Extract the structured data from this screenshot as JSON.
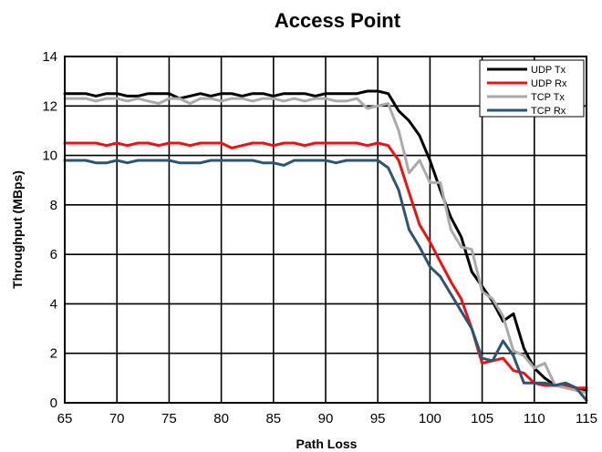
{
  "chart_data": {
    "type": "line",
    "title": "Access Point",
    "xlabel": "Path Loss",
    "ylabel": "Throughput (MBps)",
    "xlim": [
      65,
      115
    ],
    "ylim": [
      0,
      14
    ],
    "xticks": [
      65,
      70,
      75,
      80,
      85,
      90,
      95,
      100,
      105,
      110,
      115
    ],
    "yticks": [
      0,
      2,
      4,
      6,
      8,
      10,
      12,
      14
    ],
    "grid": true,
    "legend_position": "top-right",
    "x": [
      65,
      66,
      67,
      68,
      69,
      70,
      71,
      72,
      73,
      74,
      75,
      76,
      77,
      78,
      79,
      80,
      81,
      82,
      83,
      84,
      85,
      86,
      87,
      88,
      89,
      90,
      91,
      92,
      93,
      94,
      95,
      96,
      97,
      98,
      99,
      100,
      101,
      102,
      103,
      104,
      105,
      106,
      107,
      108,
      109,
      110,
      111,
      112,
      113,
      114,
      115
    ],
    "series": [
      {
        "name": "UDP Tx",
        "color": "#000000",
        "values": [
          12.5,
          12.5,
          12.5,
          12.4,
          12.5,
          12.5,
          12.4,
          12.4,
          12.5,
          12.5,
          12.5,
          12.3,
          12.4,
          12.5,
          12.4,
          12.5,
          12.5,
          12.4,
          12.5,
          12.5,
          12.4,
          12.5,
          12.5,
          12.5,
          12.4,
          12.5,
          12.5,
          12.5,
          12.5,
          12.6,
          12.6,
          12.5,
          11.8,
          11.4,
          10.8,
          9.8,
          8.6,
          7.5,
          6.7,
          5.3,
          4.7,
          4.1,
          3.3,
          3.6,
          2.2,
          1.4,
          1.0,
          0.7,
          0.8,
          0.6,
          0.5
        ]
      },
      {
        "name": "UDP Rx",
        "color": "#ee1111",
        "values": [
          10.5,
          10.5,
          10.5,
          10.5,
          10.4,
          10.5,
          10.4,
          10.5,
          10.5,
          10.4,
          10.5,
          10.5,
          10.4,
          10.5,
          10.5,
          10.5,
          10.3,
          10.4,
          10.5,
          10.5,
          10.4,
          10.5,
          10.5,
          10.4,
          10.5,
          10.5,
          10.5,
          10.5,
          10.5,
          10.4,
          10.5,
          10.4,
          9.8,
          8.5,
          7.2,
          6.5,
          5.7,
          4.9,
          4.2,
          3.0,
          1.6,
          1.7,
          1.8,
          1.3,
          1.2,
          0.8,
          0.7,
          0.7,
          0.7,
          0.6,
          0.6
        ]
      },
      {
        "name": "TCP Tx",
        "color": "#aaaaaa",
        "values": [
          12.3,
          12.3,
          12.3,
          12.2,
          12.3,
          12.3,
          12.2,
          12.3,
          12.2,
          12.1,
          12.3,
          12.3,
          12.1,
          12.3,
          12.3,
          12.2,
          12.3,
          12.3,
          12.2,
          12.3,
          12.3,
          12.2,
          12.3,
          12.2,
          12.3,
          12.3,
          12.2,
          12.2,
          12.3,
          11.9,
          12.0,
          12.1,
          11.0,
          9.3,
          9.8,
          8.9,
          8.9,
          7.0,
          6.3,
          6.2,
          4.5,
          4.2,
          3.5,
          2.1,
          1.9,
          1.4,
          1.6,
          0.7,
          0.6,
          0.5,
          0.4
        ]
      },
      {
        "name": "TCP Rx",
        "color": "#2e5570",
        "values": [
          9.8,
          9.8,
          9.8,
          9.7,
          9.7,
          9.8,
          9.7,
          9.8,
          9.8,
          9.8,
          9.8,
          9.7,
          9.7,
          9.7,
          9.8,
          9.8,
          9.8,
          9.8,
          9.8,
          9.7,
          9.7,
          9.6,
          9.8,
          9.8,
          9.8,
          9.8,
          9.7,
          9.8,
          9.8,
          9.8,
          9.8,
          9.5,
          8.6,
          7.0,
          6.3,
          5.5,
          5.1,
          4.4,
          3.7,
          3.0,
          1.8,
          1.7,
          2.5,
          1.9,
          0.8,
          0.8,
          0.8,
          0.7,
          0.8,
          0.6,
          0.1
        ]
      }
    ]
  }
}
